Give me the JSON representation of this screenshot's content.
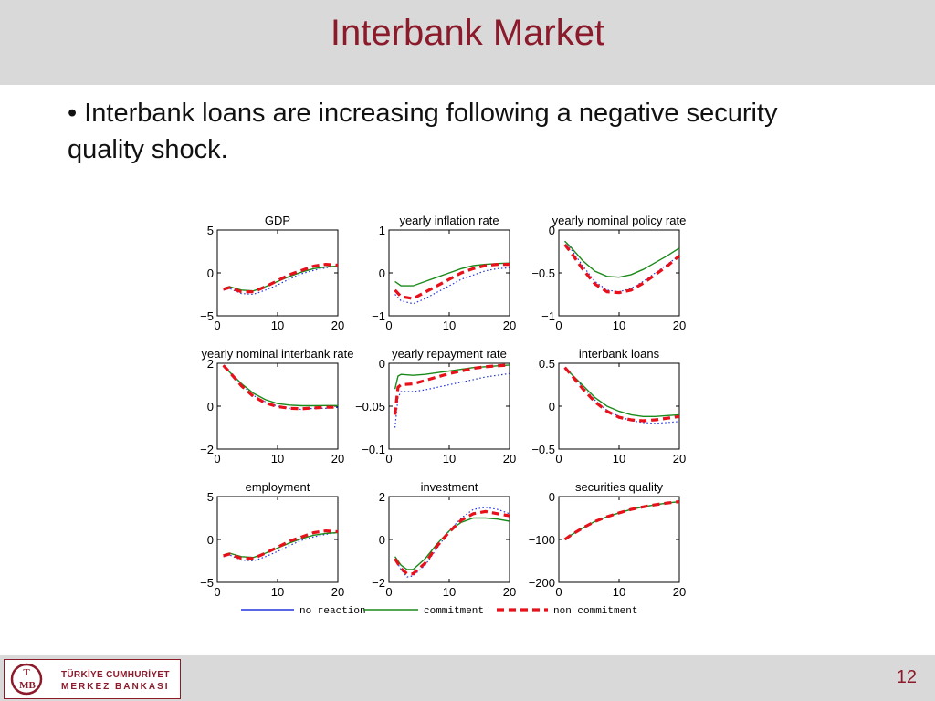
{
  "slide": {
    "title": "Interbank Market",
    "bullet": "• Interbank loans are increasing following a negative security quality shock.",
    "page_number": "12"
  },
  "logo": {
    "line1": "TÜRKİYE CUMHURİYET",
    "line2": "MERKEZ BANKASI",
    "mark_text": "TCMB"
  },
  "colors": {
    "title": "#8b1a2b",
    "header_bg": "#d9d9d9",
    "no_reaction": "#2233dd",
    "commitment": "#1a8a1a",
    "non_commitment": "#e8101a"
  },
  "chart_data": [
    {
      "type": "line",
      "title": "GDP",
      "xlim": [
        0,
        20
      ],
      "ylim": [
        -5,
        5
      ],
      "xticks": [
        0,
        10,
        20
      ],
      "yticks": [
        5,
        0,
        -5
      ],
      "x": [
        1,
        2,
        4,
        6,
        8,
        10,
        12,
        14,
        16,
        18,
        20
      ],
      "series": [
        {
          "name": "no reaction",
          "values": [
            -2.0,
            -1.8,
            -2.4,
            -2.5,
            -2.0,
            -1.4,
            -0.7,
            -0.1,
            0.3,
            0.6,
            0.8
          ]
        },
        {
          "name": "commitment",
          "values": [
            -1.8,
            -1.6,
            -2.0,
            -2.1,
            -1.6,
            -1.0,
            -0.4,
            0.1,
            0.5,
            0.7,
            0.8
          ]
        },
        {
          "name": "non commitment",
          "values": [
            -1.9,
            -1.7,
            -2.2,
            -2.2,
            -1.6,
            -0.9,
            -0.2,
            0.3,
            0.8,
            1.0,
            0.9
          ]
        }
      ]
    },
    {
      "type": "line",
      "title": "yearly inflation rate",
      "xlim": [
        0,
        20
      ],
      "ylim": [
        -1,
        1
      ],
      "xticks": [
        0,
        10,
        20
      ],
      "yticks": [
        1,
        0,
        -1
      ],
      "x": [
        1,
        2,
        4,
        6,
        8,
        10,
        12,
        14,
        16,
        18,
        20
      ],
      "series": [
        {
          "name": "no reaction",
          "values": [
            -0.5,
            -0.65,
            -0.72,
            -0.6,
            -0.45,
            -0.3,
            -0.15,
            -0.05,
            0.05,
            0.1,
            0.12
          ]
        },
        {
          "name": "commitment",
          "values": [
            -0.2,
            -0.3,
            -0.3,
            -0.2,
            -0.1,
            0.0,
            0.1,
            0.17,
            0.2,
            0.22,
            0.23
          ]
        },
        {
          "name": "non commitment",
          "values": [
            -0.4,
            -0.55,
            -0.6,
            -0.45,
            -0.3,
            -0.15,
            0.0,
            0.1,
            0.17,
            0.2,
            0.2
          ]
        }
      ]
    },
    {
      "type": "line",
      "title": "yearly nominal policy rate",
      "xlim": [
        0,
        20
      ],
      "ylim": [
        -1,
        0
      ],
      "xticks": [
        0,
        10,
        20
      ],
      "yticks": [
        0,
        -0.5,
        -1
      ],
      "x": [
        1,
        2,
        4,
        6,
        8,
        10,
        12,
        14,
        16,
        18,
        20
      ],
      "series": [
        {
          "name": "no reaction",
          "values": [
            -0.13,
            -0.22,
            -0.42,
            -0.6,
            -0.7,
            -0.72,
            -0.68,
            -0.6,
            -0.5,
            -0.4,
            -0.3
          ]
        },
        {
          "name": "commitment",
          "values": [
            -0.13,
            -0.2,
            -0.36,
            -0.48,
            -0.54,
            -0.55,
            -0.52,
            -0.46,
            -0.38,
            -0.3,
            -0.21
          ]
        },
        {
          "name": "non commitment",
          "values": [
            -0.17,
            -0.26,
            -0.46,
            -0.63,
            -0.72,
            -0.73,
            -0.7,
            -0.62,
            -0.52,
            -0.42,
            -0.3
          ]
        }
      ]
    },
    {
      "type": "line",
      "title": "yearly nominal interbank rate",
      "xlim": [
        0,
        20
      ],
      "ylim": [
        -2,
        2
      ],
      "xticks": [
        0,
        10,
        20
      ],
      "yticks": [
        2,
        0,
        -2
      ],
      "x": [
        1,
        2,
        4,
        6,
        8,
        10,
        12,
        14,
        16,
        18,
        20
      ],
      "series": [
        {
          "name": "no reaction",
          "values": [
            1.9,
            1.6,
            1.0,
            0.5,
            0.2,
            0.0,
            -0.1,
            -0.15,
            -0.1,
            -0.1,
            -0.05
          ]
        },
        {
          "name": "commitment",
          "values": [
            1.9,
            1.6,
            1.05,
            0.6,
            0.3,
            0.12,
            0.05,
            0.02,
            0.02,
            0.03,
            0.03
          ]
        },
        {
          "name": "non commitment",
          "values": [
            1.9,
            1.6,
            0.95,
            0.45,
            0.15,
            -0.02,
            -0.1,
            -0.12,
            -0.08,
            -0.05,
            -0.05
          ]
        }
      ]
    },
    {
      "type": "line",
      "title": "yearly repayment rate",
      "xlim": [
        0,
        20
      ],
      "ylim": [
        -0.1,
        0
      ],
      "xticks": [
        0,
        10,
        20
      ],
      "yticks": [
        0,
        -0.05,
        -0.1
      ],
      "x": [
        1,
        1.5,
        2,
        4,
        6,
        8,
        10,
        12,
        14,
        16,
        18,
        20
      ],
      "series": [
        {
          "name": "no reaction",
          "values": [
            -0.075,
            -0.04,
            -0.033,
            -0.033,
            -0.031,
            -0.028,
            -0.025,
            -0.022,
            -0.019,
            -0.016,
            -0.014,
            -0.012
          ]
        },
        {
          "name": "commitment",
          "values": [
            -0.03,
            -0.015,
            -0.013,
            -0.014,
            -0.013,
            -0.011,
            -0.009,
            -0.007,
            -0.005,
            -0.004,
            -0.003,
            -0.002
          ]
        },
        {
          "name": "non commitment",
          "values": [
            -0.06,
            -0.028,
            -0.025,
            -0.024,
            -0.02,
            -0.016,
            -0.012,
            -0.009,
            -0.006,
            -0.004,
            -0.003,
            -0.002
          ]
        }
      ]
    },
    {
      "type": "line",
      "title": "interbank loans",
      "xlim": [
        0,
        20
      ],
      "ylim": [
        -0.5,
        0.5
      ],
      "xticks": [
        0,
        10,
        20
      ],
      "yticks": [
        0.5,
        0,
        -0.5
      ],
      "x": [
        1,
        2,
        4,
        6,
        8,
        10,
        12,
        14,
        16,
        18,
        20
      ],
      "series": [
        {
          "name": "no reaction",
          "values": [
            0.45,
            0.38,
            0.22,
            0.07,
            -0.05,
            -0.12,
            -0.17,
            -0.19,
            -0.2,
            -0.19,
            -0.18
          ]
        },
        {
          "name": "commitment",
          "values": [
            0.45,
            0.38,
            0.24,
            0.1,
            0.0,
            -0.06,
            -0.1,
            -0.12,
            -0.12,
            -0.11,
            -0.1
          ]
        },
        {
          "name": "non commitment",
          "values": [
            0.45,
            0.37,
            0.2,
            0.05,
            -0.06,
            -0.13,
            -0.16,
            -0.17,
            -0.16,
            -0.14,
            -0.12
          ]
        }
      ]
    },
    {
      "type": "line",
      "title": "employment",
      "xlim": [
        0,
        20
      ],
      "ylim": [
        -5,
        5
      ],
      "xticks": [
        0,
        10,
        20
      ],
      "yticks": [
        5,
        0,
        -5
      ],
      "x": [
        1,
        2,
        4,
        6,
        8,
        10,
        12,
        14,
        16,
        18,
        20
      ],
      "series": [
        {
          "name": "no reaction",
          "values": [
            -2.0,
            -1.8,
            -2.4,
            -2.5,
            -2.0,
            -1.4,
            -0.7,
            -0.1,
            0.3,
            0.6,
            0.8
          ]
        },
        {
          "name": "commitment",
          "values": [
            -1.8,
            -1.6,
            -2.0,
            -2.1,
            -1.6,
            -1.0,
            -0.4,
            0.1,
            0.5,
            0.7,
            0.8
          ]
        },
        {
          "name": "non commitment",
          "values": [
            -1.9,
            -1.7,
            -2.2,
            -2.2,
            -1.6,
            -0.9,
            -0.2,
            0.3,
            0.8,
            1.0,
            0.9
          ]
        }
      ]
    },
    {
      "type": "line",
      "title": "investment",
      "xlim": [
        0,
        20
      ],
      "ylim": [
        -2,
        2
      ],
      "xticks": [
        0,
        10,
        20
      ],
      "yticks": [
        2,
        0,
        -2
      ],
      "x": [
        1,
        2,
        3,
        4,
        6,
        8,
        10,
        12,
        14,
        16,
        18,
        20
      ],
      "series": [
        {
          "name": "no reaction",
          "values": [
            -0.9,
            -1.4,
            -1.75,
            -1.7,
            -1.2,
            -0.4,
            0.4,
            1.0,
            1.4,
            1.5,
            1.4,
            1.2
          ]
        },
        {
          "name": "commitment",
          "values": [
            -0.8,
            -1.2,
            -1.4,
            -1.4,
            -0.9,
            -0.2,
            0.4,
            0.8,
            1.0,
            1.0,
            0.95,
            0.85
          ]
        },
        {
          "name": "non commitment",
          "values": [
            -0.9,
            -1.35,
            -1.6,
            -1.6,
            -1.1,
            -0.3,
            0.35,
            0.9,
            1.2,
            1.3,
            1.2,
            1.1
          ]
        }
      ]
    },
    {
      "type": "line",
      "title": "securities quality",
      "xlim": [
        0,
        20
      ],
      "ylim": [
        -200,
        0
      ],
      "xticks": [
        0,
        10,
        20
      ],
      "yticks": [
        0,
        -100,
        -200
      ],
      "x": [
        1,
        2,
        4,
        6,
        8,
        10,
        12,
        14,
        16,
        18,
        20
      ],
      "series": [
        {
          "name": "no reaction",
          "values": [
            -100,
            -90,
            -73,
            -58,
            -47,
            -38,
            -30,
            -24,
            -19,
            -15,
            -12
          ]
        },
        {
          "name": "commitment",
          "values": [
            -100,
            -90,
            -73,
            -58,
            -47,
            -38,
            -30,
            -24,
            -19,
            -15,
            -12
          ]
        },
        {
          "name": "non commitment",
          "values": [
            -100,
            -90,
            -73,
            -58,
            -47,
            -38,
            -30,
            -24,
            -19,
            -15,
            -12
          ]
        }
      ]
    }
  ],
  "legend": [
    {
      "name": "no reaction"
    },
    {
      "name": "commitment"
    },
    {
      "name": "non commitment"
    }
  ]
}
